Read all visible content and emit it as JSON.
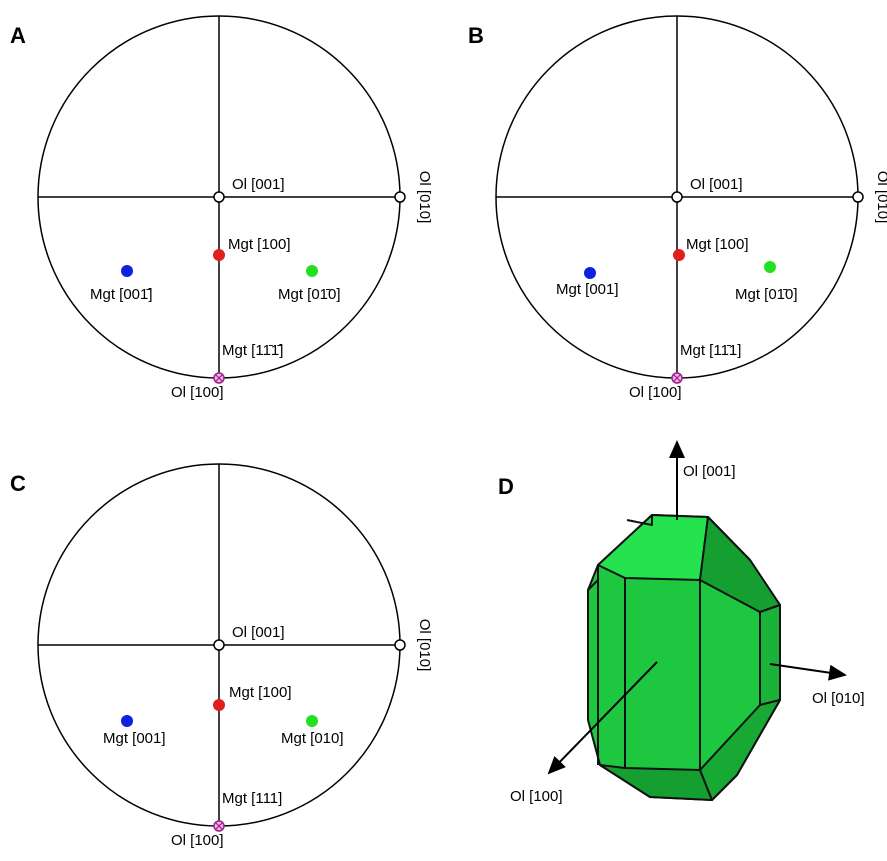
{
  "panels": [
    {
      "letter": "A",
      "axis_center": "Ol [001]",
      "axis_right": "Ol [010]",
      "axis_bottom": "Ol [100]",
      "points": [
        "Mgt [100]",
        "Mgt [001̄]",
        "Mgt [01̄0]",
        "Mgt [11̄1̄]"
      ]
    },
    {
      "letter": "B",
      "axis_center": "Ol [001]",
      "axis_right": "Ol [010]",
      "axis_bottom": "Ol [100]",
      "points": [
        "Mgt [100]",
        "Mgt [001]",
        "Mgt [01̄0]",
        "Mgt [11̄1]"
      ]
    },
    {
      "letter": "C",
      "axis_center": "Ol [001]",
      "axis_right": "Ol [010]",
      "axis_bottom": "Ol [100]",
      "points": [
        "Mgt [100]",
        "Mgt [001]",
        "Mgt [010]",
        "Mgt [111]"
      ]
    }
  ],
  "crystal": {
    "letter": "D",
    "axis_up": "Ol [001]",
    "axis_right": "Ol [010]",
    "axis_front": "Ol [100]"
  }
}
